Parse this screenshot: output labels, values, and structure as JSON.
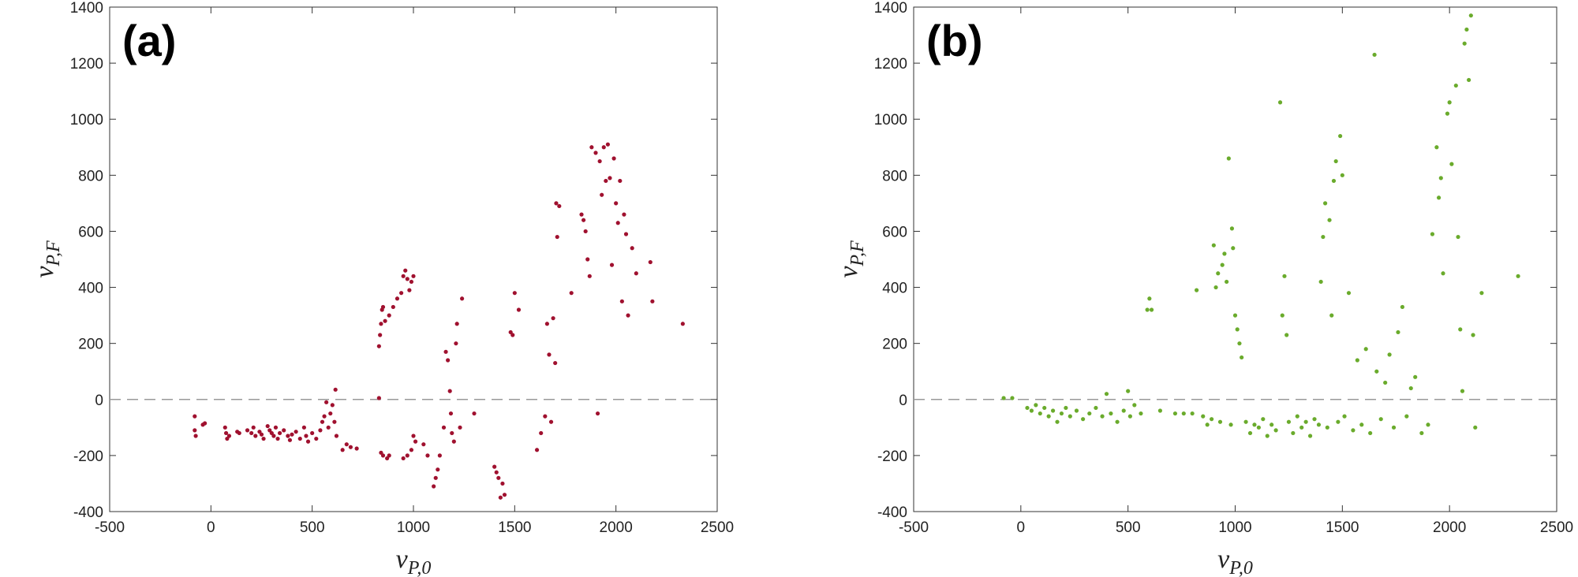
{
  "chart_data": [
    {
      "type": "scatter",
      "panel_label": "(a)",
      "color": "#a0112f",
      "xlabel": {
        "base": "v",
        "sub": "P,0"
      },
      "ylabel": {
        "base": "v",
        "sub": "P,F"
      },
      "xlim": [
        -500,
        2500
      ],
      "xticks": [
        -500,
        0,
        500,
        1000,
        1500,
        2000,
        2500
      ],
      "ylim": [
        -400,
        1400
      ],
      "yticks": [
        -400,
        -200,
        0,
        200,
        400,
        600,
        800,
        1000,
        1200,
        1400
      ],
      "hline": 0,
      "x": [
        -80,
        -80,
        -75,
        -40,
        -30,
        70,
        75,
        80,
        90,
        130,
        140,
        180,
        200,
        210,
        220,
        240,
        250,
        260,
        280,
        290,
        300,
        310,
        320,
        330,
        340,
        360,
        380,
        390,
        400,
        420,
        440,
        460,
        470,
        480,
        500,
        520,
        540,
        550,
        560,
        570,
        580,
        590,
        600,
        610,
        615,
        620,
        650,
        670,
        690,
        720,
        830,
        835,
        840,
        845,
        850,
        860,
        880,
        900,
        920,
        940,
        950,
        960,
        970,
        980,
        990,
        1000,
        830,
        840,
        850,
        870,
        880,
        950,
        970,
        990,
        1000,
        1010,
        1050,
        1070,
        1100,
        1110,
        1120,
        1130,
        1150,
        1160,
        1170,
        1180,
        1185,
        1190,
        1200,
        1210,
        1215,
        1230,
        1240,
        1300,
        1400,
        1410,
        1420,
        1430,
        1440,
        1450,
        1480,
        1490,
        1500,
        1520,
        1610,
        1630,
        1650,
        1660,
        1670,
        1680,
        1690,
        1700,
        1705,
        1710,
        1720,
        1780,
        1830,
        1840,
        1850,
        1860,
        1870,
        1880,
        1900,
        1910,
        1920,
        1930,
        1940,
        1950,
        1960,
        1970,
        1980,
        1990,
        2000,
        2010,
        2020,
        2030,
        2040,
        2050,
        2060,
        2080,
        2100,
        2170,
        2180,
        2330
      ],
      "values": [
        -60,
        -110,
        -130,
        -90,
        -85,
        -100,
        -120,
        -140,
        -130,
        -115,
        -120,
        -110,
        -120,
        -100,
        -130,
        -115,
        -125,
        -140,
        -95,
        -110,
        -120,
        -130,
        -100,
        -140,
        -120,
        -110,
        -130,
        -145,
        -125,
        -115,
        -140,
        -100,
        -130,
        -150,
        -120,
        -140,
        -110,
        -80,
        -60,
        -10,
        -100,
        -50,
        -20,
        -80,
        35,
        -130,
        -180,
        -160,
        -170,
        -175,
        190,
        230,
        270,
        320,
        330,
        280,
        300,
        330,
        360,
        380,
        440,
        460,
        430,
        390,
        420,
        440,
        5,
        -190,
        -200,
        -210,
        -200,
        -210,
        -200,
        -180,
        -130,
        -150,
        -160,
        -200,
        -310,
        -280,
        -250,
        -200,
        -100,
        170,
        140,
        30,
        -50,
        -120,
        -150,
        200,
        270,
        -100,
        360,
        -50,
        -240,
        -260,
        -280,
        -350,
        -300,
        -340,
        240,
        230,
        380,
        320,
        -180,
        -120,
        -60,
        270,
        160,
        -80,
        290,
        130,
        700,
        580,
        690,
        380,
        660,
        640,
        600,
        500,
        440,
        900,
        880,
        -50,
        850,
        730,
        900,
        780,
        910,
        790,
        480,
        860,
        700,
        630,
        780,
        350,
        660,
        590,
        300,
        540,
        450,
        490,
        350,
        270
      ]
    },
    {
      "type": "scatter",
      "panel_label": "(b)",
      "color": "#6aab2c",
      "xlabel": {
        "base": "v",
        "sub": "P,0"
      },
      "ylabel": {
        "base": "v",
        "sub": "P,F"
      },
      "xlim": [
        -500,
        2500
      ],
      "xticks": [
        -500,
        0,
        500,
        1000,
        1500,
        2000,
        2500
      ],
      "ylim": [
        -400,
        1400
      ],
      "yticks": [
        -400,
        -200,
        0,
        200,
        400,
        600,
        800,
        1000,
        1200,
        1400
      ],
      "hline": 0,
      "x": [
        -80,
        -40,
        30,
        50,
        70,
        90,
        110,
        130,
        150,
        170,
        190,
        210,
        230,
        260,
        290,
        320,
        350,
        380,
        400,
        420,
        450,
        480,
        500,
        510,
        530,
        560,
        590,
        600,
        610,
        650,
        720,
        760,
        800,
        820,
        850,
        870,
        890,
        900,
        910,
        920,
        930,
        940,
        950,
        960,
        970,
        980,
        985,
        990,
        1000,
        1010,
        1020,
        1030,
        1050,
        1070,
        1090,
        1110,
        1130,
        1150,
        1170,
        1190,
        1210,
        1220,
        1230,
        1240,
        1250,
        1270,
        1290,
        1310,
        1330,
        1350,
        1370,
        1390,
        1400,
        1410,
        1420,
        1430,
        1440,
        1450,
        1460,
        1470,
        1480,
        1490,
        1500,
        1510,
        1530,
        1550,
        1570,
        1590,
        1610,
        1630,
        1650,
        1660,
        1680,
        1700,
        1720,
        1740,
        1760,
        1780,
        1800,
        1820,
        1840,
        1870,
        1900,
        1920,
        1940,
        1950,
        1960,
        1970,
        1990,
        2000,
        2010,
        2030,
        2040,
        2050,
        2060,
        2070,
        2080,
        2090,
        2100,
        2110,
        2120,
        2150,
        2320
      ],
      "values": [
        5,
        5,
        -30,
        -40,
        -20,
        -50,
        -30,
        -60,
        -40,
        -80,
        -50,
        -30,
        -60,
        -40,
        -70,
        -50,
        -30,
        -60,
        20,
        -50,
        -80,
        -40,
        30,
        -60,
        -20,
        -50,
        320,
        360,
        320,
        -40,
        -50,
        -50,
        -50,
        390,
        -60,
        -90,
        -70,
        550,
        400,
        450,
        -80,
        480,
        520,
        420,
        860,
        -90,
        610,
        540,
        300,
        250,
        200,
        150,
        -80,
        -120,
        -90,
        -100,
        -70,
        -130,
        -90,
        -110,
        1060,
        300,
        440,
        230,
        -80,
        -120,
        -60,
        -100,
        -80,
        -130,
        -70,
        -90,
        420,
        580,
        700,
        -100,
        640,
        300,
        780,
        850,
        -80,
        940,
        800,
        -60,
        380,
        -110,
        140,
        -90,
        180,
        -120,
        1230,
        100,
        -70,
        60,
        160,
        -100,
        240,
        330,
        -60,
        40,
        80,
        -120,
        -90,
        590,
        900,
        720,
        790,
        450,
        1020,
        1060,
        840,
        1120,
        580,
        250,
        30,
        1270,
        1320,
        1140,
        1370,
        230,
        -100,
        380,
        440
      ]
    }
  ]
}
